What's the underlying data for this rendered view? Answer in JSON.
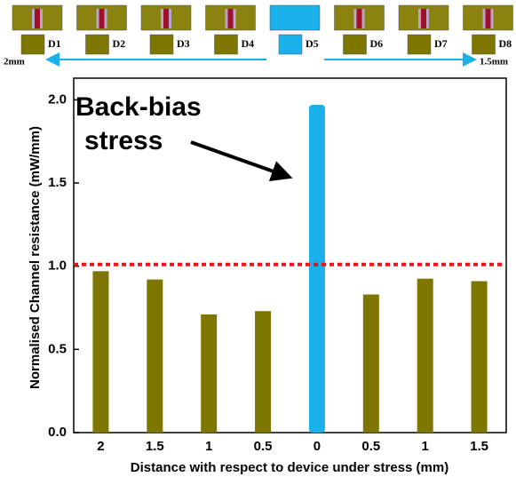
{
  "chart_data": {
    "type": "bar",
    "x_label": "Distance with respect to device under stress (mm)",
    "y_label": "Normalised Channel resistance (mW/mm)",
    "categories": [
      "2",
      "1.5",
      "1",
      "0.5",
      "0",
      "0.5",
      "1",
      "1.5"
    ],
    "values": [
      0.97,
      0.92,
      0.71,
      0.73,
      1.97,
      0.83,
      0.925,
      0.91
    ],
    "colors": [
      "#7d7600",
      "#7d7600",
      "#7d7600",
      "#7d7600",
      "#1ab0ea",
      "#7d7600",
      "#7d7600",
      "#7d7600"
    ],
    "ylim": [
      0,
      2.13
    ],
    "yticks": [
      {
        "value": 0,
        "label": "0.0"
      },
      0.5,
      {
        "value": 1,
        "label": "1.0"
      },
      1.5,
      {
        "value": 2,
        "label": "2.0"
      }
    ],
    "reference_line": {
      "value": 1.01,
      "color": "#e8141c"
    },
    "annotation": [
      "Back-bias",
      "stress"
    ],
    "devices": [
      "D1",
      "D2",
      "D3",
      "D4",
      "D5",
      "D6",
      "D7",
      "D8"
    ],
    "left_distance": "2mm",
    "right_distance": "1.5mm"
  }
}
